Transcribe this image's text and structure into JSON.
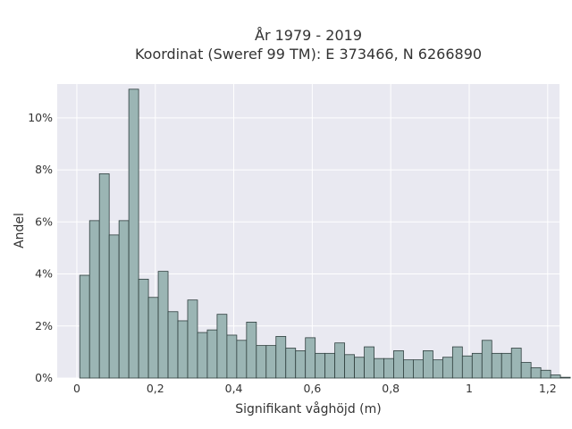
{
  "chart_data": {
    "type": "bar",
    "title_line1": "År 1979 - 2019",
    "title_line2": "Koordinat (Sweref 99 TM): E 373466, N 6266890",
    "xlabel": "Signifikant våghöjd (m)",
    "ylabel": "Andel",
    "xlim": [
      -0.05,
      1.23
    ],
    "ylim": [
      0,
      11.3
    ],
    "grid": true,
    "bin_width": 0.025,
    "bin_start": 0.0075,
    "x_ticks": [
      {
        "value": 0,
        "label": "0"
      },
      {
        "value": 0.2,
        "label": "0,2"
      },
      {
        "value": 0.4,
        "label": "0,4"
      },
      {
        "value": 0.6,
        "label": "0,6"
      },
      {
        "value": 0.8,
        "label": "0,8"
      },
      {
        "value": 1.0,
        "label": "1"
      },
      {
        "value": 1.2,
        "label": "1,2"
      }
    ],
    "y_ticks": [
      {
        "value": 0,
        "label": "0%"
      },
      {
        "value": 2,
        "label": "2%"
      },
      {
        "value": 4,
        "label": "4%"
      },
      {
        "value": 6,
        "label": "6%"
      },
      {
        "value": 8,
        "label": "8%"
      },
      {
        "value": 10,
        "label": "10%"
      }
    ],
    "values": [
      3.95,
      6.05,
      7.85,
      5.5,
      6.05,
      11.1,
      3.8,
      3.1,
      4.1,
      2.55,
      2.2,
      3.0,
      1.75,
      1.85,
      2.45,
      1.65,
      1.45,
      2.15,
      1.25,
      1.25,
      1.6,
      1.15,
      1.05,
      1.55,
      0.95,
      0.95,
      1.35,
      0.9,
      0.8,
      1.2,
      0.75,
      0.75,
      1.05,
      0.7,
      0.7,
      1.05,
      0.7,
      0.8,
      1.2,
      0.85,
      0.95,
      1.45,
      0.95,
      0.95,
      1.15,
      0.6,
      0.4,
      0.3,
      0.12,
      0.03
    ]
  }
}
